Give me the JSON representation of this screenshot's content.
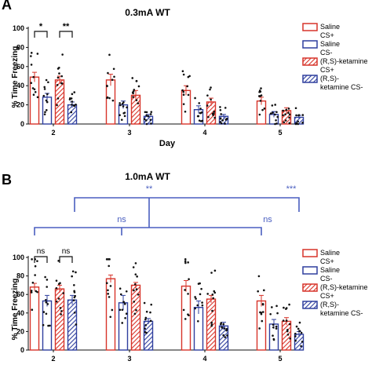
{
  "figure": {
    "colors": {
      "saline": "#d7342a",
      "ketamine_blue": "#2f3f9e",
      "bracket_blue": "#4a5fc0",
      "axis": "#111111"
    },
    "legend": [
      {
        "label_line1": "Saline",
        "label_line2": "CS+",
        "color": "#d7342a",
        "hatched": false
      },
      {
        "label_line1": "Saline",
        "label_line2": "CS-",
        "color": "#2f3f9e",
        "hatched": false
      },
      {
        "label_line1": "(R,S)-ketamine",
        "label_line2": "CS+",
        "color": "#d7342a",
        "hatched": true
      },
      {
        "label_line1": "(R,S)-",
        "label_line2": "ketamine CS-",
        "color": "#2f3f9e",
        "hatched": true
      }
    ]
  },
  "chart_data": [
    {
      "panel": "A",
      "type": "bar",
      "title": "0.3mA WT",
      "xlabel": "Day",
      "ylabel": "% Time Freezing",
      "categories": [
        "2",
        "3",
        "4",
        "5"
      ],
      "ylim": [
        0,
        100
      ],
      "yticks": [
        0,
        20,
        40,
        60,
        80,
        100
      ],
      "series": [
        {
          "name": "Saline CS+",
          "values": [
            49,
            46,
            35,
            24
          ],
          "errors": [
            5,
            6,
            5,
            4
          ]
        },
        {
          "name": "Saline CS-",
          "values": [
            28,
            20,
            15,
            10
          ],
          "errors": [
            4,
            4,
            4,
            3
          ]
        },
        {
          "name": "(R,S)-ketamine CS+",
          "values": [
            46,
            30,
            23,
            14
          ],
          "errors": [
            4,
            5,
            4,
            3
          ]
        },
        {
          "name": "(R,S)-ketamine CS-",
          "values": [
            20,
            8,
            8,
            7
          ],
          "errors": [
            3,
            2,
            2,
            2
          ]
        }
      ],
      "annotations": [
        {
          "text": "*",
          "day": "2",
          "compare": "Saline CS+ vs Saline CS-"
        },
        {
          "text": "**",
          "day": "2",
          "compare": "(R,S)-ketamine CS+ vs (R,S)-ketamine CS-"
        }
      ]
    },
    {
      "panel": "B",
      "type": "bar",
      "title": "1.0mA WT",
      "xlabel": "",
      "ylabel": "% Time Freezing",
      "categories": [
        "2",
        "3",
        "4",
        "5"
      ],
      "ylim": [
        0,
        100
      ],
      "yticks": [
        0,
        20,
        40,
        60,
        80,
        100
      ],
      "series": [
        {
          "name": "Saline CS+",
          "values": [
            68,
            77,
            69,
            53
          ],
          "errors": [
            4,
            4,
            6,
            6
          ]
        },
        {
          "name": "Saline CS-",
          "values": [
            53,
            51,
            46,
            28
          ],
          "errors": [
            6,
            8,
            7,
            5
          ]
        },
        {
          "name": "(R,S)-ketamine CS+",
          "values": [
            66,
            70,
            55,
            31
          ],
          "errors": [
            4,
            3,
            4,
            4
          ]
        },
        {
          "name": "(R,S)-ketamine CS-",
          "values": [
            54,
            31,
            26,
            17
          ],
          "errors": [
            5,
            3,
            4,
            3
          ]
        }
      ],
      "annotations": [
        {
          "text": "ns",
          "day": "2",
          "compare": "Saline CS+ vs Saline CS-"
        },
        {
          "text": "ns",
          "day": "2",
          "compare": "(R,S)-ketamine CS+ vs (R,S)-ketamine CS-"
        },
        {
          "text": "ns",
          "compare": "Saline, day 2 vs day 5"
        },
        {
          "text": "**",
          "compare": "upper bracket, left"
        },
        {
          "text": "***",
          "compare": "upper bracket, right"
        },
        {
          "text": "ns",
          "compare": "lower bracket, right"
        }
      ]
    }
  ]
}
